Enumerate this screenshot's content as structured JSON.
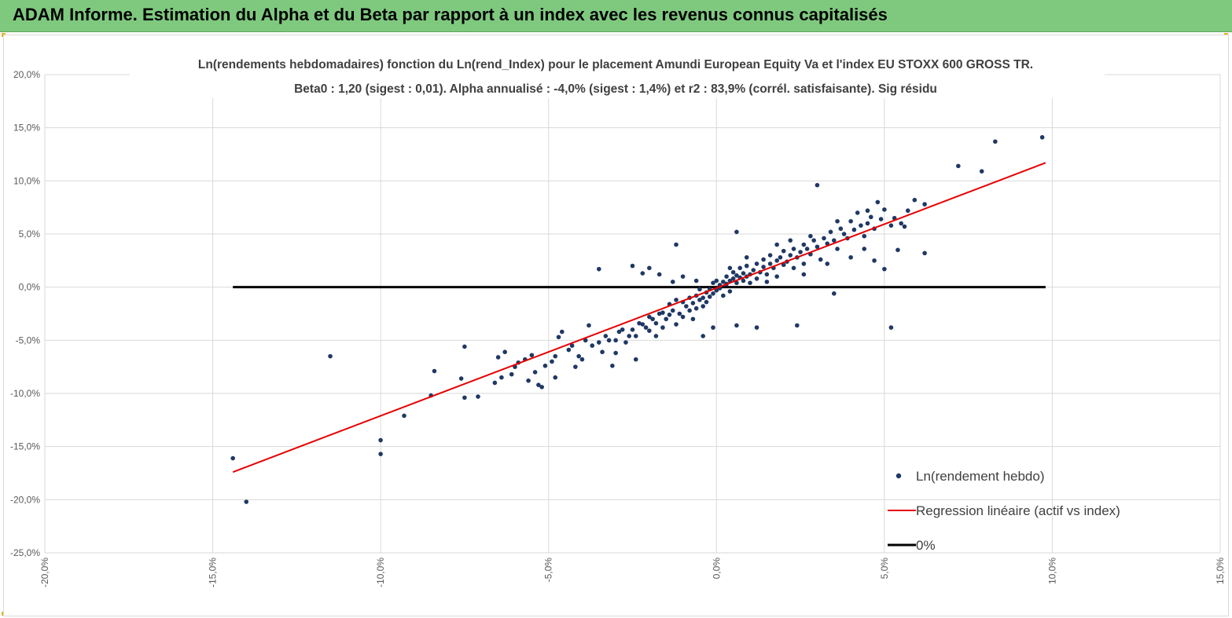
{
  "header": {
    "title": "ADAM Informe. Estimation du Alpha et du Beta par rapport à un index avec les revenus connus capitalisés"
  },
  "colors": {
    "header_bg": "#7fc97f",
    "points": "#1f3864",
    "regression": "#e60000",
    "zero_line": "#000000",
    "grid": "#d9d9d9"
  },
  "chart_data": {
    "type": "scatter",
    "title_line1": "Ln(rendements hebdomadaires) fonction du Ln(rend_Index) pour le placement Amundi European Equity Va et l'index EU STOXX 600 GROSS TR.",
    "title_line2": "Beta0 : 1,20 (sigest : 0,01). Alpha annualisé : -4,0% (sigest : 1,4%) et r2 : 83,9% (corrél. satisfaisante). Sig résidu",
    "xlim": [
      -0.2,
      0.15
    ],
    "ylim": [
      -0.25,
      0.2
    ],
    "x_ticks": [
      {
        "value": -0.2,
        "label": "-20,0%"
      },
      {
        "value": -0.15,
        "label": "-15,0%"
      },
      {
        "value": -0.1,
        "label": "-10,0%"
      },
      {
        "value": -0.05,
        "label": "-5,0%"
      },
      {
        "value": 0.0,
        "label": "0,0%"
      },
      {
        "value": 0.05,
        "label": "5,0%"
      },
      {
        "value": 0.1,
        "label": "10,0%"
      },
      {
        "value": 0.15,
        "label": "15,0%"
      }
    ],
    "y_ticks": [
      {
        "value": 0.2,
        "label": "20,0%"
      },
      {
        "value": 0.15,
        "label": "15,0%"
      },
      {
        "value": 0.1,
        "label": "10,0%"
      },
      {
        "value": 0.05,
        "label": "5,0%"
      },
      {
        "value": 0.0,
        "label": "0,0%"
      },
      {
        "value": -0.05,
        "label": "-5,0%"
      },
      {
        "value": -0.1,
        "label": "-10,0%"
      },
      {
        "value": -0.15,
        "label": "-15,0%"
      },
      {
        "value": -0.2,
        "label": "-20,0%"
      },
      {
        "value": -0.25,
        "label": "-25,0%"
      }
    ],
    "grid": true,
    "legend_position": "bottom-right",
    "series": [
      {
        "name": "Ln(rendement hebdo)",
        "type": "scatter",
        "points": [
          [
            -0.144,
            -0.161
          ],
          [
            -0.14,
            -0.202
          ],
          [
            -0.115,
            -0.065
          ],
          [
            -0.1,
            -0.157
          ],
          [
            -0.1,
            -0.144
          ],
          [
            -0.093,
            -0.121
          ],
          [
            -0.085,
            -0.102
          ],
          [
            -0.084,
            -0.079
          ],
          [
            -0.076,
            -0.086
          ],
          [
            -0.075,
            -0.056
          ],
          [
            -0.075,
            -0.104
          ],
          [
            -0.071,
            -0.103
          ],
          [
            -0.066,
            -0.09
          ],
          [
            -0.065,
            -0.066
          ],
          [
            -0.064,
            -0.085
          ],
          [
            -0.063,
            -0.061
          ],
          [
            -0.061,
            -0.082
          ],
          [
            -0.06,
            -0.075
          ],
          [
            -0.059,
            -0.071
          ],
          [
            -0.057,
            -0.068
          ],
          [
            -0.056,
            -0.088
          ],
          [
            -0.055,
            -0.064
          ],
          [
            -0.054,
            -0.08
          ],
          [
            -0.053,
            -0.092
          ],
          [
            -0.052,
            -0.094
          ],
          [
            -0.051,
            -0.074
          ],
          [
            -0.049,
            -0.07
          ],
          [
            -0.048,
            -0.085
          ],
          [
            -0.048,
            -0.065
          ],
          [
            -0.047,
            -0.047
          ],
          [
            -0.046,
            -0.042
          ],
          [
            -0.044,
            -0.059
          ],
          [
            -0.043,
            -0.055
          ],
          [
            -0.042,
            -0.075
          ],
          [
            -0.041,
            -0.065
          ],
          [
            -0.04,
            -0.068
          ],
          [
            -0.039,
            -0.05
          ],
          [
            -0.037,
            -0.055
          ],
          [
            -0.035,
            -0.052
          ],
          [
            -0.034,
            -0.061
          ],
          [
            -0.033,
            -0.046
          ],
          [
            -0.032,
            -0.05
          ],
          [
            -0.031,
            -0.074
          ],
          [
            -0.03,
            -0.062
          ],
          [
            -0.029,
            -0.042
          ],
          [
            -0.028,
            -0.04
          ],
          [
            -0.027,
            -0.052
          ],
          [
            -0.026,
            -0.046
          ],
          [
            -0.025,
            -0.04
          ],
          [
            -0.024,
            -0.046
          ],
          [
            -0.024,
            -0.068
          ],
          [
            -0.023,
            -0.034
          ],
          [
            -0.022,
            -0.035
          ],
          [
            -0.021,
            -0.038
          ],
          [
            -0.02,
            -0.041
          ],
          [
            -0.02,
            -0.028
          ],
          [
            -0.019,
            -0.03
          ],
          [
            -0.018,
            -0.034
          ],
          [
            -0.018,
            -0.046
          ],
          [
            -0.017,
            -0.025
          ],
          [
            -0.016,
            -0.024
          ],
          [
            -0.016,
            -0.038
          ],
          [
            -0.015,
            -0.03
          ],
          [
            -0.014,
            -0.016
          ],
          [
            -0.014,
            -0.026
          ],
          [
            -0.013,
            -0.022
          ],
          [
            -0.012,
            -0.035
          ],
          [
            -0.012,
            -0.012
          ],
          [
            -0.011,
            -0.025
          ],
          [
            -0.01,
            -0.028
          ],
          [
            -0.01,
            -0.014
          ],
          [
            -0.009,
            -0.018
          ],
          [
            -0.008,
            -0.022
          ],
          [
            -0.008,
            -0.01
          ],
          [
            -0.007,
            -0.015
          ],
          [
            -0.007,
            -0.03
          ],
          [
            -0.006,
            -0.008
          ],
          [
            -0.006,
            -0.02
          ],
          [
            -0.005,
            -0.012
          ],
          [
            -0.005,
            -0.002
          ],
          [
            -0.004,
            -0.01
          ],
          [
            -0.004,
            -0.018
          ],
          [
            -0.003,
            -0.005
          ],
          [
            -0.003,
            -0.014
          ],
          [
            -0.002,
            -0.002
          ],
          [
            -0.002,
            -0.009
          ],
          [
            -0.001,
            -0.006
          ],
          [
            -0.001,
            0.004
          ],
          [
            0.0,
            -0.003
          ],
          [
            0.0,
            0.006
          ],
          [
            0.001,
            -0.001
          ],
          [
            0.001,
            0.002
          ],
          [
            0.002,
            0.005
          ],
          [
            0.002,
            -0.008
          ],
          [
            0.003,
            0.003
          ],
          [
            0.003,
            0.01
          ],
          [
            0.004,
            0.006
          ],
          [
            0.004,
            -0.004
          ],
          [
            0.005,
            0.008
          ],
          [
            0.005,
            0.014
          ],
          [
            0.006,
            0.004
          ],
          [
            0.006,
            0.011
          ],
          [
            0.007,
            0.009
          ],
          [
            0.007,
            0.018
          ],
          [
            0.008,
            0.006
          ],
          [
            0.008,
            0.013
          ],
          [
            0.009,
            0.01
          ],
          [
            0.009,
            0.02
          ],
          [
            0.01,
            0.012
          ],
          [
            0.01,
            0.004
          ],
          [
            0.011,
            0.016
          ],
          [
            0.012,
            0.022
          ],
          [
            0.012,
            0.008
          ],
          [
            0.013,
            0.014
          ],
          [
            0.014,
            0.019
          ],
          [
            0.014,
            0.026
          ],
          [
            0.015,
            0.012
          ],
          [
            0.016,
            0.022
          ],
          [
            0.016,
            0.03
          ],
          [
            0.017,
            0.018
          ],
          [
            0.018,
            0.025
          ],
          [
            0.018,
            0.01
          ],
          [
            0.019,
            0.028
          ],
          [
            0.02,
            0.021
          ],
          [
            0.02,
            0.034
          ],
          [
            0.021,
            0.024
          ],
          [
            0.022,
            0.03
          ],
          [
            0.023,
            0.018
          ],
          [
            0.023,
            0.036
          ],
          [
            0.024,
            0.028
          ],
          [
            0.025,
            0.033
          ],
          [
            0.026,
            0.04
          ],
          [
            0.026,
            0.022
          ],
          [
            0.027,
            0.036
          ],
          [
            0.028,
            0.031
          ],
          [
            0.029,
            0.044
          ],
          [
            0.03,
            0.038
          ],
          [
            0.031,
            0.026
          ],
          [
            0.032,
            0.046
          ],
          [
            0.033,
            0.041
          ],
          [
            0.034,
            0.052
          ],
          [
            0.035,
            0.044
          ],
          [
            0.036,
            0.036
          ],
          [
            0.037,
            0.055
          ],
          [
            0.038,
            0.05
          ],
          [
            0.039,
            0.046
          ],
          [
            0.04,
            0.062
          ],
          [
            0.041,
            0.054
          ],
          [
            0.042,
            0.07
          ],
          [
            0.043,
            0.058
          ],
          [
            0.044,
            0.048
          ],
          [
            0.045,
            0.06
          ],
          [
            0.046,
            0.066
          ],
          [
            0.047,
            0.055
          ],
          [
            0.048,
            0.08
          ],
          [
            0.049,
            0.064
          ],
          [
            0.05,
            0.073
          ],
          [
            0.052,
            0.058
          ],
          [
            0.053,
            0.065
          ],
          [
            0.055,
            0.06
          ],
          [
            0.057,
            0.072
          ],
          [
            0.059,
            0.082
          ],
          [
            0.062,
            0.078
          ],
          [
            0.062,
            0.032
          ],
          [
            0.052,
            -0.038
          ],
          [
            0.072,
            0.114
          ],
          [
            0.079,
            0.109
          ],
          [
            0.083,
            0.137
          ],
          [
            0.097,
            0.141
          ],
          [
            0.03,
            0.096
          ],
          [
            0.024,
            -0.036
          ],
          [
            0.012,
            -0.038
          ],
          [
            0.006,
            0.052
          ],
          [
            0.006,
            -0.036
          ],
          [
            -0.012,
            0.04
          ],
          [
            -0.017,
            0.012
          ],
          [
            -0.02,
            0.018
          ],
          [
            -0.025,
            0.02
          ],
          [
            -0.035,
            0.017
          ],
          [
            -0.022,
            0.013
          ],
          [
            -0.013,
            0.005
          ],
          [
            -0.004,
            -0.046
          ],
          [
            -0.001,
            -0.038
          ],
          [
            0.035,
            -0.006
          ],
          [
            0.05,
            0.017
          ],
          [
            0.047,
            0.025
          ],
          [
            0.056,
            0.057
          ],
          [
            0.054,
            0.035
          ],
          [
            -0.03,
            -0.05
          ],
          [
            -0.038,
            -0.036
          ],
          [
            0.004,
            0.018
          ],
          [
            0.009,
            0.028
          ],
          [
            0.018,
            0.04
          ],
          [
            0.026,
            0.012
          ],
          [
            0.04,
            0.028
          ],
          [
            0.044,
            0.036
          ],
          [
            0.033,
            0.022
          ],
          [
            0.015,
            0.005
          ],
          [
            -0.006,
            0.006
          ],
          [
            -0.01,
            0.01
          ],
          [
            0.022,
            0.044
          ],
          [
            0.028,
            0.048
          ],
          [
            0.036,
            0.062
          ],
          [
            0.045,
            0.072
          ]
        ]
      },
      {
        "name": "Regression linéaire (actif vs index)",
        "type": "line",
        "points": [
          [
            -0.144,
            -0.174
          ],
          [
            0.098,
            0.117
          ]
        ]
      },
      {
        "name": "0%",
        "type": "line",
        "points": [
          [
            -0.144,
            0.0
          ],
          [
            0.098,
            0.0
          ]
        ]
      }
    ]
  }
}
